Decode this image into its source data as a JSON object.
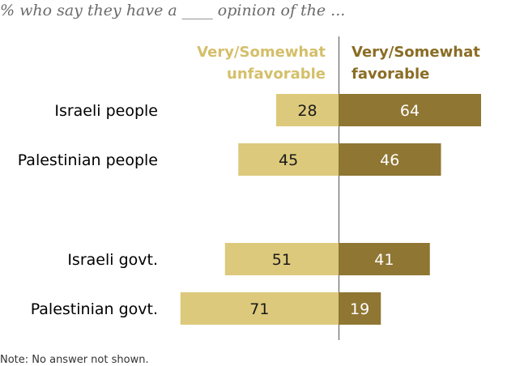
{
  "subtitle": "% who say they have a ____ opinion of the ...",
  "note": "Note: No answer not shown.",
  "colors": {
    "unfavorable": "#dcc97b",
    "favorable": "#8f7633",
    "unfavorable_text": "#d4bf6a",
    "favorable_text": "#8a6d25",
    "divider": "#555555"
  },
  "chart_data": {
    "type": "bar",
    "orientation": "horizontal-diverging",
    "categories": [
      "Israeli people",
      "Palestinian people",
      "Israeli govt.",
      "Palestinian govt."
    ],
    "series": [
      {
        "name": "Very/Somewhat unfavorable",
        "values": [
          28,
          45,
          51,
          71
        ]
      },
      {
        "name": "Very/Somewhat favorable",
        "values": [
          64,
          46,
          41,
          19
        ]
      }
    ],
    "legend": {
      "unfavorable": [
        "Very/Somewhat",
        "unfavorable"
      ],
      "favorable": [
        "Very/Somewhat",
        "favorable"
      ]
    },
    "legend_placement": "top",
    "grid": false
  }
}
